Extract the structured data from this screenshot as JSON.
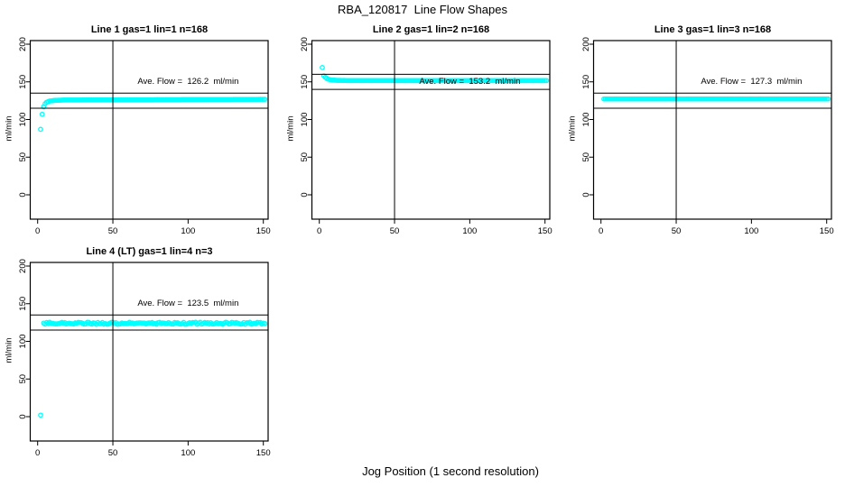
{
  "header": {
    "title": "RBA_120817  Line Flow Shapes"
  },
  "footer": {
    "xlabel": "Jog Position (1 second resolution)"
  },
  "style": {
    "marker_color": "#00FFFF",
    "axis_color": "#000000",
    "background": "#FFFFFF"
  },
  "chart_data": [
    {
      "type": "scatter",
      "title": "Line 1 gas=1 lin=1 n=168",
      "ylabel": "ml/min",
      "annotation": "Ave. Flow =  126.2  ml/min",
      "ave_flow": 126.2,
      "n": 168,
      "x_ticks": [
        0,
        50,
        100,
        150
      ],
      "y_ticks": [
        0,
        50,
        100,
        150,
        200
      ],
      "vline_x": 50,
      "hlines": [
        135,
        115
      ],
      "annotation_at": {
        "x": 100,
        "y": 150
      },
      "series": {
        "x_start": 2,
        "x_end": 151,
        "x_step": 1,
        "noise_amp": 0,
        "control_points": [
          [
            2,
            87
          ],
          [
            3,
            107
          ],
          [
            4,
            117
          ],
          [
            5,
            121
          ],
          [
            6,
            123
          ],
          [
            8,
            124.5
          ],
          [
            12,
            125.5
          ],
          [
            20,
            126
          ],
          [
            80,
            126.3
          ],
          [
            151,
            126.8
          ]
        ]
      },
      "outlier_points": []
    },
    {
      "type": "scatter",
      "title": "Line 2 gas=1 lin=2 n=168",
      "ylabel": "ml/min",
      "annotation": "Ave. Flow =  153.2  ml/min",
      "ave_flow": 153.2,
      "n": 168,
      "x_ticks": [
        0,
        50,
        100,
        150
      ],
      "y_ticks": [
        0,
        50,
        100,
        150,
        200
      ],
      "vline_x": 50,
      "hlines": [
        160,
        140
      ],
      "annotation_at": {
        "x": 100,
        "y": 150
      },
      "series": {
        "x_start": 2,
        "x_end": 151,
        "x_step": 1,
        "noise_amp": 0,
        "control_points": [
          [
            2,
            169
          ],
          [
            3,
            158
          ],
          [
            4,
            156
          ],
          [
            5,
            154.5
          ],
          [
            6,
            153.5
          ],
          [
            8,
            152.5
          ],
          [
            12,
            152
          ],
          [
            20,
            151.7
          ],
          [
            151,
            151.6
          ]
        ]
      },
      "outlier_points": []
    },
    {
      "type": "scatter",
      "title": "Line 3 gas=1 lin=3 n=168",
      "ylabel": "ml/min",
      "annotation": "Ave. Flow =  127.3  ml/min",
      "ave_flow": 127.3,
      "n": 168,
      "x_ticks": [
        0,
        50,
        100,
        150
      ],
      "y_ticks": [
        0,
        50,
        100,
        150,
        200
      ],
      "vline_x": 50,
      "hlines": [
        135,
        115
      ],
      "annotation_at": {
        "x": 100,
        "y": 150
      },
      "series": {
        "x_start": 2,
        "x_end": 151,
        "x_step": 1,
        "noise_amp": 0,
        "control_points": [
          [
            2,
            127.3
          ],
          [
            151,
            127.3
          ]
        ]
      },
      "outlier_points": []
    },
    {
      "type": "scatter",
      "title": "Line 4 (LT) gas=1 lin=4 n=3",
      "ylabel": "ml/min",
      "annotation": "Ave. Flow =  123.5  ml/min",
      "ave_flow": 123.5,
      "n": 3,
      "x_ticks": [
        0,
        50,
        100,
        150
      ],
      "y_ticks": [
        0,
        50,
        100,
        150,
        200
      ],
      "vline_x": 50,
      "hlines": [
        135,
        115
      ],
      "annotation_at": {
        "x": 100,
        "y": 150
      },
      "series": {
        "x_start": 4,
        "x_end": 151,
        "x_step": 1,
        "noise_amp": 1.3,
        "control_points": [
          [
            4,
            124
          ],
          [
            151,
            124
          ]
        ]
      },
      "outlier_points": [
        [
          2,
          2
        ]
      ]
    }
  ]
}
